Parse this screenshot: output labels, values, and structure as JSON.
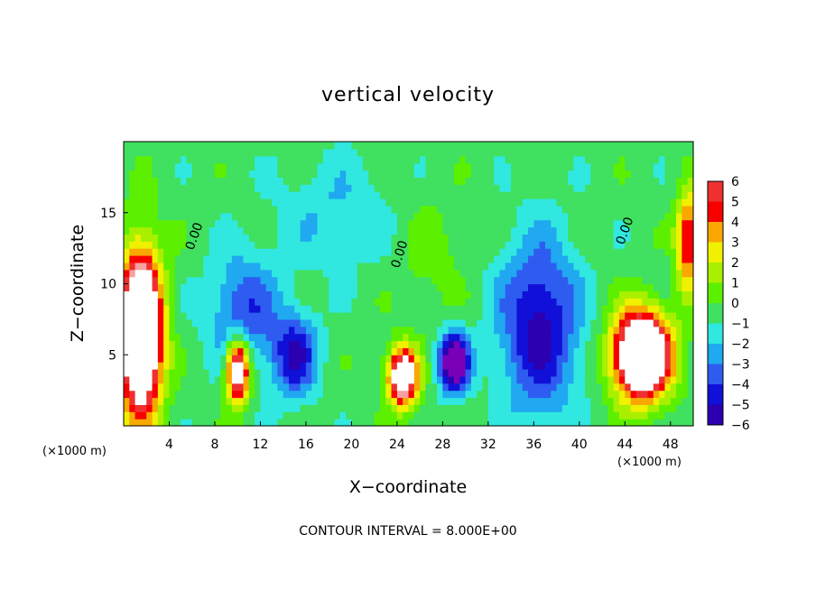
{
  "chart_data": {
    "type": "heatmap",
    "title": "vertical velocity",
    "xlabel": "X−coordinate",
    "ylabel": "Z−coordinate",
    "x_unit": "(×1000 m)",
    "z_unit": "(×1000 m)",
    "xlim": [
      0,
      50
    ],
    "ylim": [
      0,
      20
    ],
    "x_ticks": [
      4,
      8,
      12,
      16,
      20,
      24,
      28,
      32,
      36,
      40,
      44,
      48
    ],
    "y_ticks": [
      5,
      10,
      15
    ],
    "colorbar": {
      "levels": [
        6,
        5,
        4,
        3,
        2,
        1,
        0,
        -1,
        -2,
        -3,
        -4,
        -5,
        -6
      ],
      "labels": [
        "6",
        "5",
        "4",
        "3",
        "2",
        "1",
        "0",
        "−1",
        "−2",
        "−3",
        "−4",
        "−5",
        "−6"
      ]
    },
    "contour_labels": [
      "0.00",
      "0.00",
      "0.00"
    ],
    "contour_interval_text": "CONTOUR INTERVAL = 8.000E+00",
    "features": [
      {
        "x": 1.5,
        "z": 6.5,
        "w": 14,
        "sx": 1.8,
        "sz": 5.5
      },
      {
        "x": 10.0,
        "z": 4.0,
        "w": 10,
        "sx": 1.0,
        "sz": 2.2
      },
      {
        "x": 15.0,
        "z": 5.0,
        "w": -4.5,
        "sx": 2.0,
        "sz": 3.0
      },
      {
        "x": 10.5,
        "z": 8.0,
        "w": -3.5,
        "sx": 3.0,
        "sz": 4.0
      },
      {
        "x": 24.5,
        "z": 3.5,
        "w": 10,
        "sx": 1.3,
        "sz": 2.0
      },
      {
        "x": 29.0,
        "z": 4.5,
        "w": -8,
        "sx": 1.3,
        "sz": 2.0
      },
      {
        "x": 36.5,
        "z": 7.0,
        "w": -5,
        "sx": 3.5,
        "sz": 6.0
      },
      {
        "x": 45.5,
        "z": 5.0,
        "w": 13,
        "sx": 2.5,
        "sz": 3.0
      },
      {
        "x": 49.5,
        "z": 13.0,
        "w": 6,
        "sx": 1.0,
        "sz": 3.5
      },
      {
        "x": 18.5,
        "z": 15.0,
        "w": -1.5,
        "sx": 5.0,
        "sz": 4.0
      },
      {
        "x": 27.0,
        "z": 12.0,
        "w": 1.0,
        "sx": 3.0,
        "sz": 4.0
      }
    ]
  }
}
